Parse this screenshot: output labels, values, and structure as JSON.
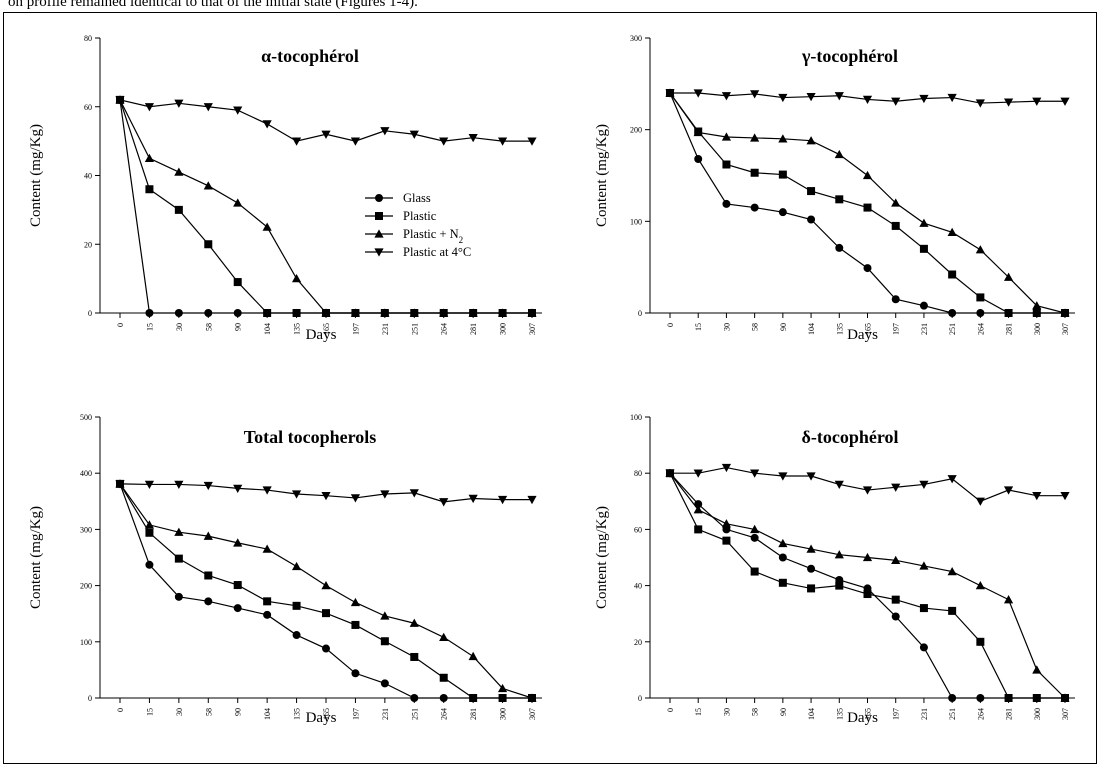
{
  "caption": "on profile remained identical to that of the initial state (Figures 1-4).",
  "x_categories": [
    "0",
    "15",
    "30",
    "58",
    "90",
    "104",
    "135",
    "165",
    "197",
    "231",
    "251",
    "264",
    "281",
    "300",
    "307"
  ],
  "legend": {
    "entries": [
      {
        "name": "Glass",
        "marker": "circle"
      },
      {
        "name": "Plastic",
        "marker": "square"
      },
      {
        "name": "Plastic + N",
        "subscript": "2",
        "marker": "triangle-up"
      },
      {
        "name": "Plastic at 4°C",
        "marker": "triangle-down"
      }
    ]
  },
  "chart_data": [
    {
      "type": "line",
      "title": "α-tocophérol",
      "xlabel": "Days",
      "ylabel": "Content (mg/Kg)",
      "ylim": [
        0,
        80
      ],
      "yticks": [
        0,
        20,
        40,
        60,
        80
      ],
      "categories": [
        "0",
        "15",
        "30",
        "58",
        "90",
        "104",
        "135",
        "165",
        "197",
        "231",
        "251",
        "264",
        "281",
        "300",
        "307"
      ],
      "series": [
        {
          "name": "Glass",
          "marker": "circle",
          "values": [
            62,
            0,
            0,
            0,
            0,
            0,
            0,
            0,
            0,
            0,
            0,
            0,
            0,
            0,
            0
          ]
        },
        {
          "name": "Plastic",
          "marker": "square",
          "values": [
            62,
            36,
            30,
            20,
            9,
            0,
            0,
            0,
            0,
            0,
            0,
            0,
            0,
            0,
            0
          ]
        },
        {
          "name": "Plastic + N2",
          "marker": "triangle-up",
          "values": [
            62,
            45,
            41,
            37,
            32,
            25,
            10,
            0,
            0,
            0,
            0,
            0,
            0,
            0,
            0
          ]
        },
        {
          "name": "Plastic at 4°C",
          "marker": "triangle-down",
          "values": [
            62,
            60,
            61,
            60,
            59,
            55,
            50,
            52,
            50,
            53,
            52,
            50,
            51,
            50,
            50
          ]
        }
      ]
    },
    {
      "type": "line",
      "title": "γ-tocophérol",
      "xlabel": "Days",
      "ylabel": "Content (mg/Kg)",
      "ylim": [
        0,
        300
      ],
      "yticks": [
        0,
        100,
        200,
        300
      ],
      "categories": [
        "0",
        "15",
        "30",
        "58",
        "90",
        "104",
        "135",
        "165",
        "197",
        "231",
        "251",
        "264",
        "281",
        "300",
        "307"
      ],
      "series": [
        {
          "name": "Glass",
          "marker": "circle",
          "values": [
            240,
            168,
            119,
            115,
            110,
            102,
            71,
            49,
            15,
            8,
            0,
            0,
            0,
            0,
            0
          ]
        },
        {
          "name": "Plastic",
          "marker": "square",
          "values": [
            240,
            198,
            162,
            153,
            151,
            133,
            124,
            115,
            95,
            70,
            42,
            17,
            0,
            0,
            0
          ]
        },
        {
          "name": "Plastic + N2",
          "marker": "triangle-up",
          "values": [
            240,
            197,
            192,
            191,
            190,
            188,
            173,
            150,
            120,
            98,
            88,
            69,
            39,
            8,
            0
          ]
        },
        {
          "name": "Plastic at 4°C",
          "marker": "triangle-down",
          "values": [
            240,
            240,
            237,
            239,
            235,
            236,
            237,
            233,
            231,
            234,
            235,
            229,
            230,
            231,
            231
          ]
        }
      ]
    },
    {
      "type": "line",
      "title": "Total tocopherols",
      "xlabel": "Days",
      "ylabel": "Content (mg/Kg)",
      "ylim": [
        0,
        500
      ],
      "yticks": [
        0,
        100,
        200,
        300,
        400,
        500
      ],
      "categories": [
        "0",
        "15",
        "30",
        "58",
        "90",
        "104",
        "135",
        "165",
        "197",
        "231",
        "251",
        "264",
        "281",
        "300",
        "307"
      ],
      "series": [
        {
          "name": "Glass",
          "marker": "circle",
          "values": [
            381,
            237,
            180,
            172,
            160,
            148,
            112,
            88,
            44,
            26,
            0,
            0,
            0,
            0,
            0
          ]
        },
        {
          "name": "Plastic",
          "marker": "square",
          "values": [
            381,
            294,
            248,
            218,
            201,
            172,
            164,
            151,
            130,
            101,
            73,
            36,
            0,
            0,
            0
          ]
        },
        {
          "name": "Plastic + N2",
          "marker": "triangle-up",
          "values": [
            381,
            308,
            295,
            288,
            276,
            265,
            234,
            200,
            170,
            146,
            133,
            108,
            74,
            17,
            0
          ]
        },
        {
          "name": "Plastic at 4°C",
          "marker": "triangle-down",
          "values": [
            381,
            380,
            380,
            378,
            373,
            370,
            363,
            360,
            356,
            363,
            365,
            349,
            355,
            353,
            353
          ]
        }
      ]
    },
    {
      "type": "line",
      "title": "δ-tocophérol",
      "xlabel": "Days",
      "ylabel": "Content (mg/Kg)",
      "ylim": [
        0,
        100
      ],
      "yticks": [
        0,
        20,
        40,
        60,
        80,
        100
      ],
      "categories": [
        "0",
        "15",
        "30",
        "58",
        "90",
        "104",
        "135",
        "165",
        "197",
        "231",
        "251",
        "264",
        "281",
        "300",
        "307"
      ],
      "series": [
        {
          "name": "Glass",
          "marker": "circle",
          "values": [
            80,
            69,
            60,
            57,
            50,
            46,
            42,
            39,
            29,
            18,
            0,
            0,
            0,
            0,
            0
          ]
        },
        {
          "name": "Plastic",
          "marker": "square",
          "values": [
            80,
            60,
            56,
            45,
            41,
            39,
            40,
            37,
            35,
            32,
            31,
            20,
            0,
            0,
            0
          ]
        },
        {
          "name": "Plastic + N2",
          "marker": "triangle-up",
          "values": [
            80,
            67,
            62,
            60,
            55,
            53,
            51,
            50,
            49,
            47,
            45,
            40,
            35,
            10,
            0
          ]
        },
        {
          "name": "Plastic at 4°C",
          "marker": "triangle-down",
          "values": [
            80,
            80,
            82,
            80,
            79,
            79,
            76,
            74,
            75,
            76,
            78,
            70,
            74,
            72,
            72
          ]
        }
      ]
    }
  ]
}
